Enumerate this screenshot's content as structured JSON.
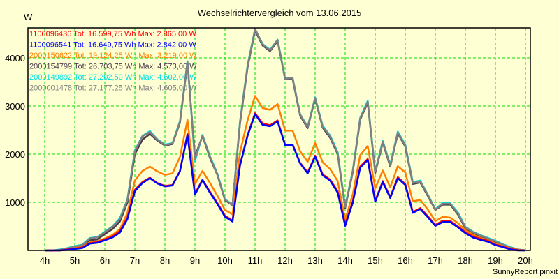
{
  "header": {
    "title": "Wechselrichtervergleich vom 13.06.2015",
    "unit": "W",
    "credit": "SunnyReport pinxit"
  },
  "colors": {
    "background": "#ffffd4",
    "grid": "#00e000",
    "axis": "#000000"
  },
  "legend": [
    {
      "id": "1100096436",
      "text": "1100096436 Tot: 16.599,75 Wh Max: 2.865,00 W",
      "color": "#ff0000"
    },
    {
      "id": "1100096541",
      "text": "1100096541 Tot: 16.649,75 Wh Max: 2.842,00 W",
      "color": "#0000ff"
    },
    {
      "id": "2000150622",
      "text": "2000150622 Tot: 19.124,25 Wh Max: 3.219,00 W",
      "color": "#ff8000"
    },
    {
      "id": "2000154799",
      "text": "2000154799 Tot: 26.703,75 Wh Max: 4.573,00 W",
      "color": "#4b3a4b"
    },
    {
      "id": "2000149892",
      "text": "2000149892 Tot: 27.202,50 Wh Max: 4.602,00 W",
      "color": "#00e0e0"
    },
    {
      "id": "2000001478",
      "text": "2000001478 Tot: 27.177,25 Wh Max: 4.605,00 W",
      "color": "#808080"
    }
  ],
  "chart_data": {
    "type": "line",
    "title": "Wechselrichtervergleich vom 13.06.2015",
    "xlabel": "",
    "ylabel": "W",
    "ylim": [
      0,
      4600
    ],
    "xlim_hours": [
      3.5,
      20.2
    ],
    "grid": true,
    "legend_position": "top-left inside",
    "x_ticks": [
      "4h",
      "5h",
      "6h",
      "7h",
      "8h",
      "9h",
      "10h",
      "11h",
      "12h",
      "13h",
      "14h",
      "15h",
      "16h",
      "17h",
      "18h",
      "19h",
      "20h"
    ],
    "y_ticks": [
      1000,
      2000,
      3000,
      4000
    ],
    "x": [
      4.0,
      4.25,
      4.5,
      4.75,
      5.0,
      5.25,
      5.5,
      5.75,
      6.0,
      6.25,
      6.5,
      6.75,
      7.0,
      7.25,
      7.5,
      7.75,
      8.0,
      8.25,
      8.5,
      8.75,
      9.0,
      9.25,
      9.5,
      9.75,
      10.0,
      10.25,
      10.5,
      10.75,
      11.0,
      11.25,
      11.5,
      11.75,
      12.0,
      12.25,
      12.5,
      12.75,
      13.0,
      13.25,
      13.5,
      13.75,
      14.0,
      14.25,
      14.5,
      14.75,
      15.0,
      15.25,
      15.5,
      15.75,
      16.0,
      16.25,
      16.5,
      16.75,
      17.0,
      17.25,
      17.5,
      17.75,
      18.0,
      18.25,
      18.5,
      18.75,
      19.0,
      19.25,
      19.5,
      19.75,
      20.0
    ],
    "series": [
      {
        "name": "1100096436",
        "color": "#ff0000",
        "total_wh": "16.599,75",
        "max_w": "2.865,00",
        "values": [
          0,
          0,
          0,
          20,
          40,
          60,
          150,
          170,
          230,
          290,
          400,
          680,
          1260,
          1420,
          1510,
          1400,
          1340,
          1360,
          1650,
          2420,
          1180,
          1470,
          1220,
          980,
          720,
          620,
          1780,
          2400,
          2850,
          2640,
          2600,
          2700,
          2200,
          2200,
          1820,
          1620,
          1970,
          1580,
          1470,
          1230,
          540,
          1010,
          1740,
          1900,
          1030,
          1440,
          1110,
          1520,
          1380,
          800,
          880,
          710,
          530,
          620,
          610,
          500,
          380,
          290,
          240,
          200,
          120,
          80,
          30,
          5,
          0
        ]
      },
      {
        "name": "1100096541",
        "color": "#0000ff",
        "total_wh": "16.649,75",
        "max_w": "2.842,00",
        "values": [
          0,
          0,
          0,
          10,
          30,
          50,
          140,
          160,
          210,
          270,
          370,
          650,
          1230,
          1400,
          1500,
          1390,
          1330,
          1350,
          1640,
          2400,
          1160,
          1460,
          1200,
          960,
          700,
          600,
          1770,
          2380,
          2830,
          2610,
          2580,
          2680,
          2190,
          2190,
          1810,
          1600,
          1950,
          1560,
          1450,
          1200,
          510,
          990,
          1720,
          1880,
          1010,
          1420,
          1090,
          1500,
          1360,
          780,
          860,
          690,
          510,
          590,
          590,
          480,
          360,
          270,
          220,
          180,
          110,
          70,
          20,
          0,
          0
        ]
      },
      {
        "name": "2000150622",
        "color": "#ff8000",
        "total_wh": "19.124,25",
        "max_w": "3.219,00",
        "values": [
          0,
          0,
          0,
          20,
          50,
          70,
          170,
          190,
          250,
          320,
          440,
          780,
          1450,
          1650,
          1740,
          1640,
          1570,
          1600,
          1940,
          2710,
          1380,
          1650,
          1400,
          1130,
          840,
          750,
          2040,
          2700,
          3210,
          2960,
          2920,
          3040,
          2490,
          2490,
          2060,
          1840,
          2230,
          1830,
          1690,
          1440,
          640,
          1160,
          1980,
          2170,
          1290,
          1660,
          1310,
          1750,
          1620,
          1020,
          1050,
          850,
          610,
          700,
          680,
          570,
          420,
          330,
          260,
          210,
          140,
          90,
          40,
          10,
          0
        ]
      },
      {
        "name": "2000154799",
        "color": "#4b3a4b",
        "total_wh": "26.703,75",
        "max_w": "4.573,00",
        "values": [
          0,
          0,
          10,
          30,
          60,
          90,
          210,
          230,
          340,
          440,
          600,
          990,
          2000,
          2300,
          2420,
          2280,
          2180,
          2210,
          2650,
          3900,
          1950,
          2380,
          1920,
          1560,
          1040,
          940,
          2640,
          3800,
          4570,
          4260,
          4140,
          4350,
          3560,
          3560,
          2800,
          2540,
          3150,
          2550,
          2340,
          2000,
          880,
          1620,
          2720,
          3070,
          1610,
          2240,
          1740,
          2430,
          2160,
          1380,
          1410,
          1130,
          840,
          950,
          950,
          750,
          460,
          360,
          300,
          240,
          180,
          110,
          60,
          20,
          0
        ]
      },
      {
        "name": "2000149892",
        "color": "#00e0e0",
        "total_wh": "27.202,50",
        "max_w": "4.602,00",
        "values": [
          0,
          0,
          20,
          50,
          90,
          120,
          260,
          280,
          390,
          500,
          670,
          1060,
          2080,
          2380,
          2480,
          2310,
          2200,
          2230,
          2690,
          3930,
          1850,
          2400,
          1960,
          1590,
          1060,
          960,
          2690,
          3850,
          4600,
          4290,
          4170,
          4380,
          3580,
          3590,
          2830,
          2570,
          3180,
          2590,
          2390,
          2040,
          920,
          1660,
          2760,
          3110,
          1650,
          2280,
          1780,
          2470,
          2200,
          1420,
          1450,
          1160,
          860,
          990,
          980,
          790,
          490,
          390,
          320,
          260,
          200,
          130,
          70,
          20,
          0
        ]
      },
      {
        "name": "2000001478",
        "color": "#808080",
        "total_wh": "27.177,25",
        "max_w": "4.605,00",
        "values": [
          0,
          0,
          10,
          40,
          80,
          110,
          250,
          270,
          380,
          490,
          650,
          1040,
          2060,
          2370,
          2460,
          2300,
          2190,
          2220,
          2670,
          3920,
          1900,
          2390,
          1940,
          1570,
          1050,
          950,
          2670,
          3830,
          4600,
          4280,
          4160,
          4370,
          3570,
          3580,
          2820,
          2560,
          3170,
          2570,
          2370,
          2020,
          900,
          1640,
          2740,
          3090,
          1630,
          2260,
          1760,
          2450,
          2180,
          1400,
          1430,
          1150,
          850,
          970,
          970,
          770,
          480,
          380,
          310,
          250,
          190,
          120,
          60,
          20,
          0
        ]
      }
    ]
  }
}
